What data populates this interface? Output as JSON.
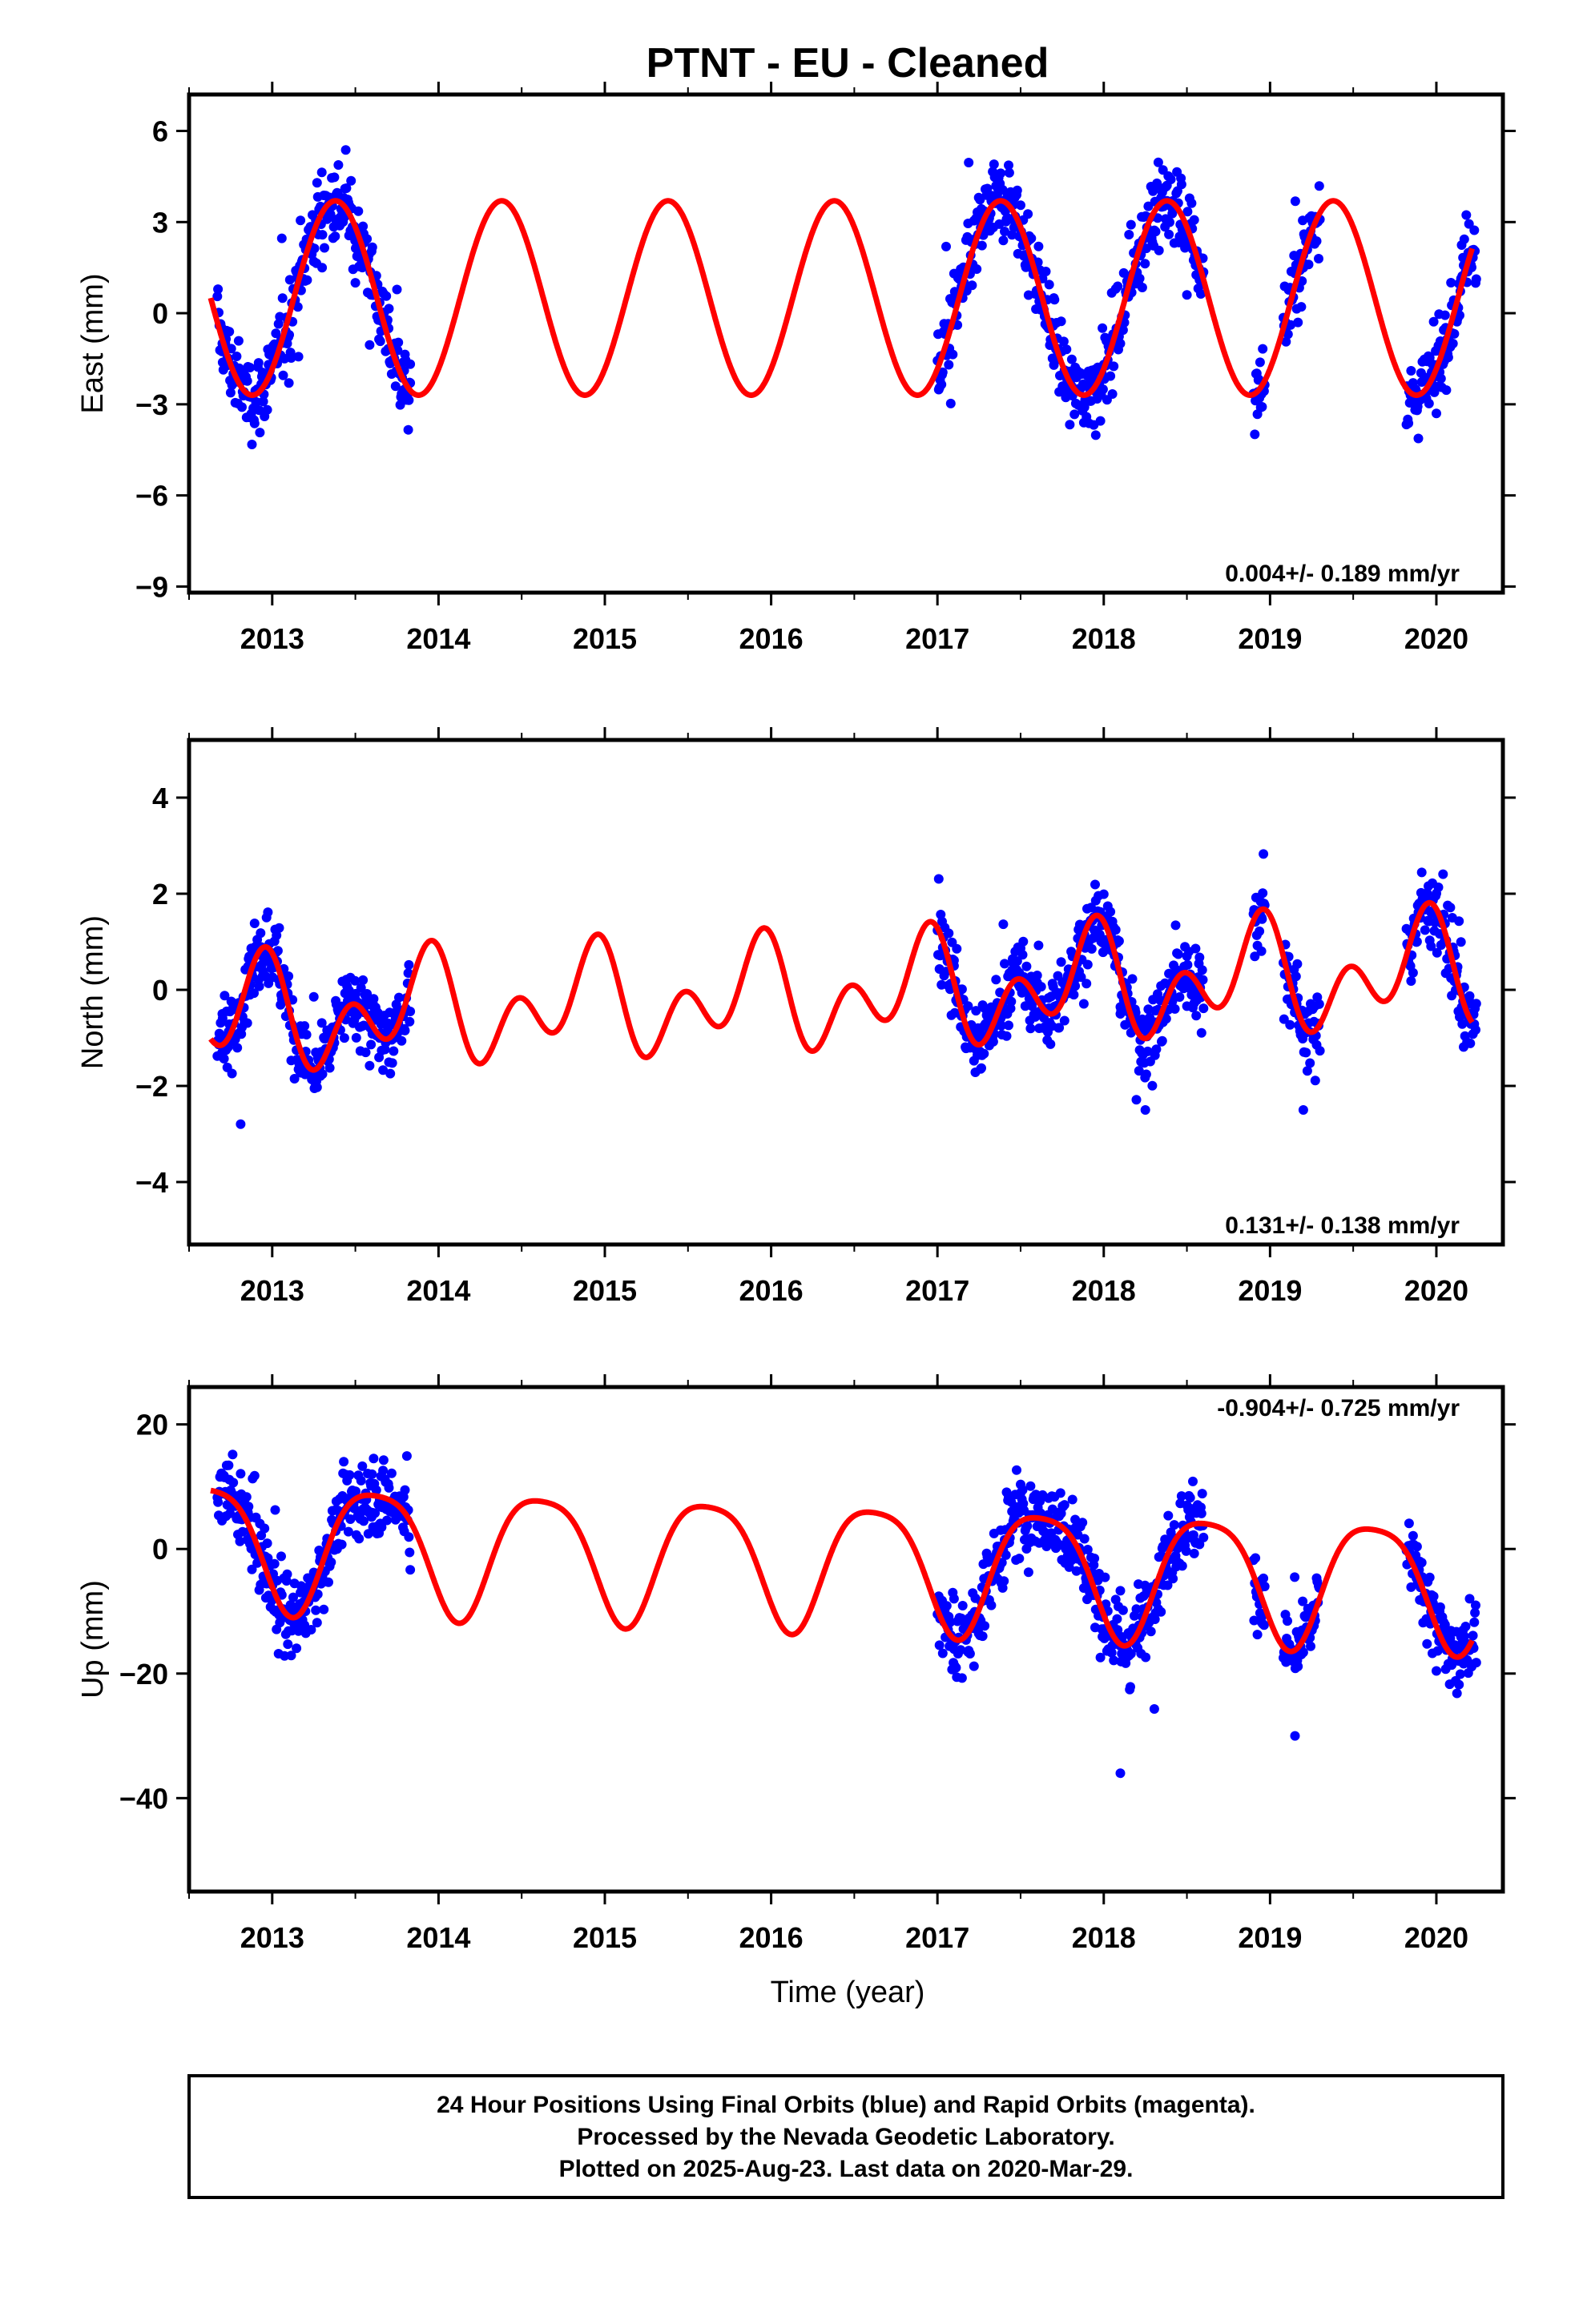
{
  "title": "PTNT  - EU - Cleaned",
  "xlabel": "Time (year)",
  "caption": [
    "24 Hour Positions Using Final Orbits (blue) and Rapid Orbits (magenta).",
    "Processed by the Nevada Geodetic Laboratory.",
    "Plotted on 2025-Aug-23. Last data on 2020-Mar-29."
  ],
  "colors": {
    "data": "#0000ff",
    "model": "#ff0000",
    "frame": "#000000"
  },
  "chart_data": [
    {
      "type": "scatter",
      "ylabel": "East (mm)",
      "rate_label": "0.004+/- 0.189 mm/yr",
      "xlim": [
        2012.5,
        2020.4
      ],
      "ylim": [
        -9.2,
        7.2
      ],
      "xticks": [
        2013,
        2014,
        2015,
        2016,
        2017,
        2018,
        2019,
        2020
      ],
      "yticks": [
        6,
        3,
        0,
        -3,
        -6,
        -9
      ],
      "ytick_labels": [
        "6",
        "3",
        "0",
        "−3",
        "−6",
        "−9"
      ],
      "data_segments": [
        [
          2012.67,
          2013.83
        ],
        [
          2017.0,
          2018.6
        ],
        [
          2018.9,
          2018.97
        ],
        [
          2019.08,
          2019.3
        ],
        [
          2019.82,
          2020.24
        ]
      ],
      "series": [
        {
          "kind": "observations",
          "x": [
            2012.7,
            2012.9,
            2013.1,
            2013.3,
            2013.38,
            2013.5,
            2013.7,
            2013.83,
            2017.1,
            2017.4,
            2017.7,
            2017.9,
            2018.1,
            2018.38,
            2018.5,
            2018.93,
            2019.2,
            2019.85,
            2020.0,
            2020.2
          ],
          "y": [
            -1.0,
            -2.6,
            -2.3,
            1.5,
            3.8,
            1.0,
            -0.5,
            -2.3,
            0.4,
            3.6,
            0.5,
            -2.0,
            -1.0,
            3.7,
            0.6,
            -2.2,
            1.5,
            -2.4,
            -3.3,
            1.6
          ]
        },
        {
          "kind": "model",
          "offset": 0.5,
          "annual_amplitude": 3.2,
          "annual_peak": 2013.38,
          "semiannual_amplitude": 0.0,
          "semiannual_peak": 2013.3
        }
      ]
    },
    {
      "type": "scatter",
      "ylabel": "North (mm)",
      "rate_label": "0.131+/- 0.138 mm/yr",
      "xlim": [
        2012.5,
        2020.4
      ],
      "ylim": [
        -5.3,
        5.2
      ],
      "xticks": [
        2013,
        2014,
        2015,
        2016,
        2017,
        2018,
        2019,
        2020
      ],
      "yticks": [
        4,
        2,
        0,
        -2,
        -4
      ],
      "ytick_labels": [
        "4",
        "2",
        "0",
        "−2",
        "−4"
      ],
      "data_segments": [
        [
          2012.67,
          2013.83
        ],
        [
          2017.0,
          2018.6
        ],
        [
          2018.9,
          2018.97
        ],
        [
          2019.08,
          2019.3
        ],
        [
          2019.82,
          2020.24
        ]
      ],
      "series": [
        {
          "kind": "observations",
          "x": [
            2012.7,
            2012.9,
            2013.2,
            2013.5,
            2013.7,
            2017.1,
            2017.3,
            2017.6,
            2017.9,
            2018.1,
            2018.25,
            2018.5,
            2018.95,
            2019.2,
            2019.9,
            2020.2
          ],
          "y": [
            -0.5,
            0.9,
            -1.7,
            -0.2,
            -0.7,
            0.5,
            -1.0,
            0.3,
            1.0,
            -0.5,
            -2.5,
            0.7,
            1.5,
            -2.5,
            1.6,
            -0.5
          ]
        },
        {
          "kind": "model",
          "offset": -0.1,
          "annual_amplitude": 0.7,
          "annual_peak": 2012.9,
          "semiannual_amplitude": 0.8,
          "semiannual_peak": 2012.97,
          "trend": 0.131,
          "trend_ref": 2016.4
        }
      ]
    },
    {
      "type": "scatter",
      "ylabel": "Up (mm)",
      "rate_label": "-0.904+/- 0.725 mm/yr",
      "xlim": [
        2012.5,
        2020.4
      ],
      "ylim": [
        -55,
        26
      ],
      "xticks": [
        2013,
        2014,
        2015,
        2016,
        2017,
        2018,
        2019,
        2020
      ],
      "yticks": [
        20,
        0,
        -20,
        -40
      ],
      "ytick_labels": [
        "20",
        "0",
        "−20",
        "−40"
      ],
      "data_segments": [
        [
          2012.67,
          2013.83
        ],
        [
          2017.0,
          2018.6
        ],
        [
          2018.9,
          2018.97
        ],
        [
          2019.08,
          2019.3
        ],
        [
          2019.82,
          2020.24
        ]
      ],
      "series": [
        {
          "kind": "observations",
          "x": [
            2012.7,
            2012.9,
            2013.2,
            2013.6,
            2013.8,
            2017.1,
            2017.5,
            2017.8,
            2018.1,
            2018.5,
            2018.95,
            2019.15,
            2019.9,
            2020.2
          ],
          "y": [
            12,
            5,
            -10,
            12,
            5,
            -8,
            9,
            2,
            -36,
            7,
            -5,
            -30,
            -2,
            -8
          ]
        },
        {
          "kind": "model",
          "offset": -2.0,
          "annual_amplitude": 10.0,
          "annual_peak": 2013.62,
          "semiannual_amplitude": 2.0,
          "semiannual_peak": 2013.38,
          "trend": -0.904,
          "trend_ref": 2016.4
        }
      ]
    }
  ]
}
